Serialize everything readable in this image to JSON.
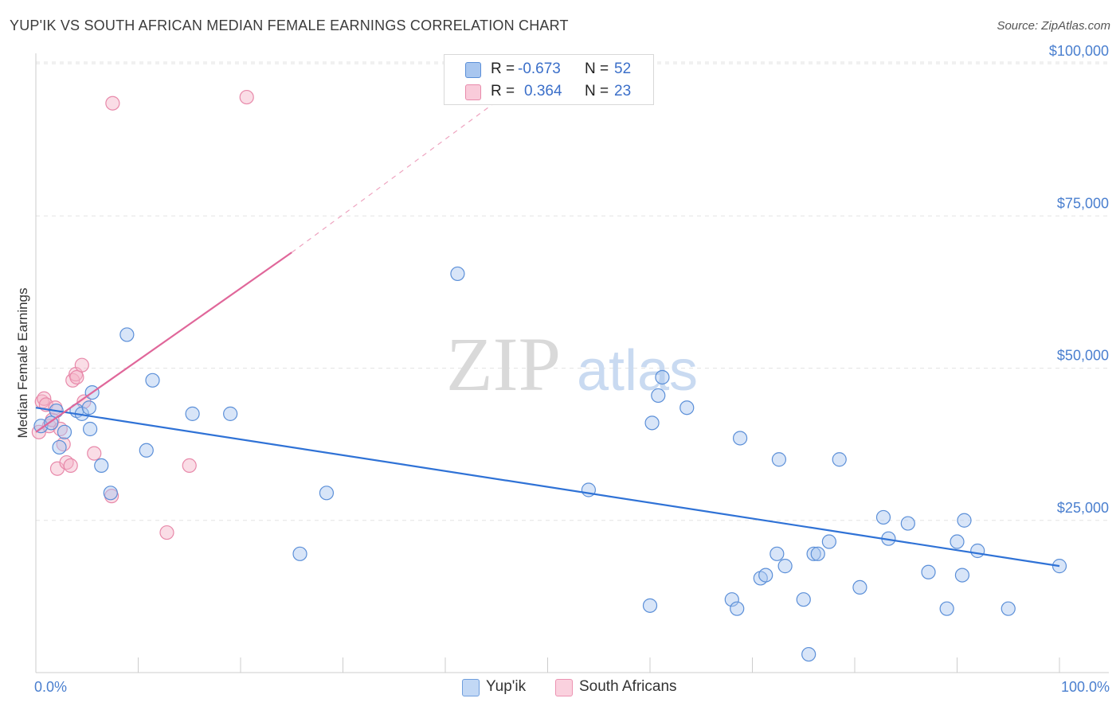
{
  "title": "YUP'IK VS SOUTH AFRICAN MEDIAN FEMALE EARNINGS CORRELATION CHART",
  "source": "Source: ZipAtlas.com",
  "watermark": {
    "zip": "ZIP",
    "atlas": "atlas"
  },
  "legend": [
    {
      "r_label": "R =",
      "r_value": "-0.673",
      "n_label": "N =",
      "n_value": "52",
      "color": "#a8c6ef"
    },
    {
      "r_label": "R =",
      "r_value": "0.364",
      "n_label": "N =",
      "n_value": "23",
      "color": "#f5b3c8"
    }
  ],
  "bottom_legend": [
    "Yup'ik",
    "South Africans"
  ],
  "chart_data": {
    "type": "scatter",
    "title": "YUP'IK VS SOUTH AFRICAN MEDIAN FEMALE EARNINGS CORRELATION CHART",
    "xlabel": "",
    "ylabel": "Median Female Earnings",
    "xlim": [
      0,
      100
    ],
    "ylim": [
      0,
      105000
    ],
    "x_tick_labels": [
      "0.0%",
      "100.0%"
    ],
    "y_ticks": [
      25000,
      50000,
      75000,
      100000
    ],
    "y_tick_labels": [
      "$25,000",
      "$50,000",
      "$75,000",
      "$100,000"
    ],
    "grid": "horizontal dashed",
    "legend_placement": "top-center",
    "colors": {
      "yupik_fill": "#a8c6ef",
      "yupik_line": "#2f72d6",
      "sa_fill": "#f5b3c8",
      "sa_line": "#e0679a"
    },
    "series": [
      {
        "name": "Yup'ik",
        "points": [
          [
            0.5,
            40500
          ],
          [
            1.5,
            41000
          ],
          [
            2.0,
            43000
          ],
          [
            2.3,
            37000
          ],
          [
            2.8,
            39500
          ],
          [
            4.0,
            43000
          ],
          [
            4.5,
            42500
          ],
          [
            5.2,
            43500
          ],
          [
            5.5,
            46000
          ],
          [
            5.3,
            40000
          ],
          [
            6.4,
            34000
          ],
          [
            7.3,
            29500
          ],
          [
            8.9,
            55500
          ],
          [
            10.8,
            36500
          ],
          [
            11.4,
            48000
          ],
          [
            15.3,
            42500
          ],
          [
            19.0,
            42500
          ],
          [
            25.8,
            19500
          ],
          [
            28.4,
            29500
          ],
          [
            41.2,
            65500
          ],
          [
            54.0,
            30000
          ],
          [
            60.0,
            11000
          ],
          [
            60.2,
            41000
          ],
          [
            60.8,
            45500
          ],
          [
            61.2,
            48500
          ],
          [
            63.6,
            43500
          ],
          [
            68.0,
            12000
          ],
          [
            68.5,
            10500
          ],
          [
            68.8,
            38500
          ],
          [
            70.8,
            15500
          ],
          [
            71.3,
            16000
          ],
          [
            72.4,
            19500
          ],
          [
            72.6,
            35000
          ],
          [
            73.2,
            17500
          ],
          [
            75.0,
            12000
          ],
          [
            75.5,
            3000
          ],
          [
            76.0,
            19500
          ],
          [
            76.4,
            19500
          ],
          [
            77.5,
            21500
          ],
          [
            78.5,
            35000
          ],
          [
            80.5,
            14000
          ],
          [
            82.8,
            25500
          ],
          [
            83.3,
            22000
          ],
          [
            85.2,
            24500
          ],
          [
            87.2,
            16500
          ],
          [
            89.0,
            10500
          ],
          [
            90.0,
            21500
          ],
          [
            90.5,
            16000
          ],
          [
            90.7,
            25000
          ],
          [
            92.0,
            20000
          ],
          [
            95.0,
            10500
          ],
          [
            100.0,
            17500
          ]
        ]
      },
      {
        "name": "South Africans",
        "points": [
          [
            0.3,
            39500
          ],
          [
            0.6,
            44500
          ],
          [
            0.8,
            45000
          ],
          [
            1.0,
            44000
          ],
          [
            1.3,
            40500
          ],
          [
            1.6,
            41500
          ],
          [
            1.9,
            43500
          ],
          [
            2.1,
            33500
          ],
          [
            2.4,
            40000
          ],
          [
            2.7,
            37500
          ],
          [
            3.0,
            34500
          ],
          [
            3.4,
            34000
          ],
          [
            3.6,
            48000
          ],
          [
            3.9,
            49000
          ],
          [
            4.0,
            48500
          ],
          [
            4.5,
            50500
          ],
          [
            4.7,
            44500
          ],
          [
            5.7,
            36000
          ],
          [
            7.4,
            29000
          ],
          [
            7.5,
            93500
          ],
          [
            12.8,
            23000
          ],
          [
            15.0,
            34000
          ],
          [
            20.6,
            94500
          ]
        ]
      }
    ],
    "trendlines": [
      {
        "series": "Yup'ik",
        "from": [
          0,
          43500
        ],
        "to": [
          100,
          17500
        ],
        "style": "solid"
      },
      {
        "series": "South Africans",
        "from": [
          0,
          39500
        ],
        "to": [
          25,
          69000
        ],
        "style": "solid",
        "extension_to": [
          50,
          100000
        ],
        "extension_style": "dashed"
      }
    ]
  }
}
